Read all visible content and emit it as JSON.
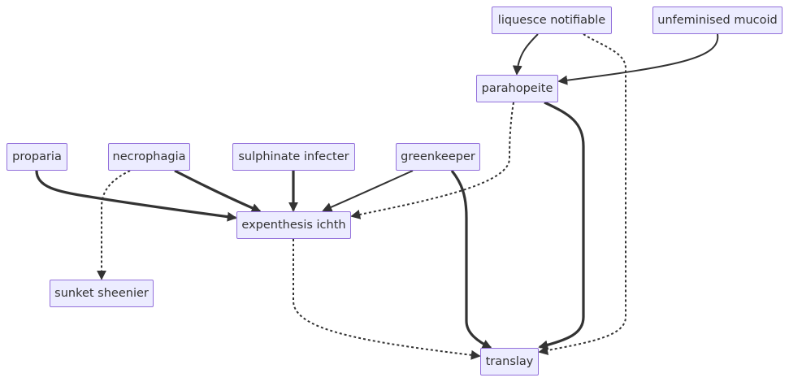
{
  "diagram": {
    "nodes": {
      "liquesce": "liquesce notifiable",
      "unfeminised": "unfeminised mucoid",
      "parahopeite": "parahopeite",
      "proparia": "proparia",
      "necrophagia": "necrophagia",
      "sulphinate": "sulphinate infecter",
      "greenkeeper": "greenkeeper",
      "expenthesis": "expenthesis ichth",
      "sunket": "sunket sheenier",
      "translay": "translay"
    },
    "edges": [
      {
        "from": "liquesce",
        "to": "parahopeite",
        "style": "normal"
      },
      {
        "from": "unfeminised",
        "to": "parahopeite",
        "style": "normal"
      },
      {
        "from": "liquesce",
        "to": "translay",
        "style": "dotted"
      },
      {
        "from": "parahopeite",
        "to": "translay",
        "style": "thick"
      },
      {
        "from": "parahopeite",
        "to": "expenthesis",
        "style": "dotted"
      },
      {
        "from": "proparia",
        "to": "expenthesis",
        "style": "thick"
      },
      {
        "from": "necrophagia",
        "to": "expenthesis",
        "style": "thick"
      },
      {
        "from": "sulphinate",
        "to": "expenthesis",
        "style": "thick"
      },
      {
        "from": "greenkeeper",
        "to": "expenthesis",
        "style": "normal"
      },
      {
        "from": "necrophagia",
        "to": "sunket",
        "style": "dotted"
      },
      {
        "from": "greenkeeper",
        "to": "translay",
        "style": "thick"
      },
      {
        "from": "expenthesis",
        "to": "translay",
        "style": "dotted"
      }
    ]
  }
}
